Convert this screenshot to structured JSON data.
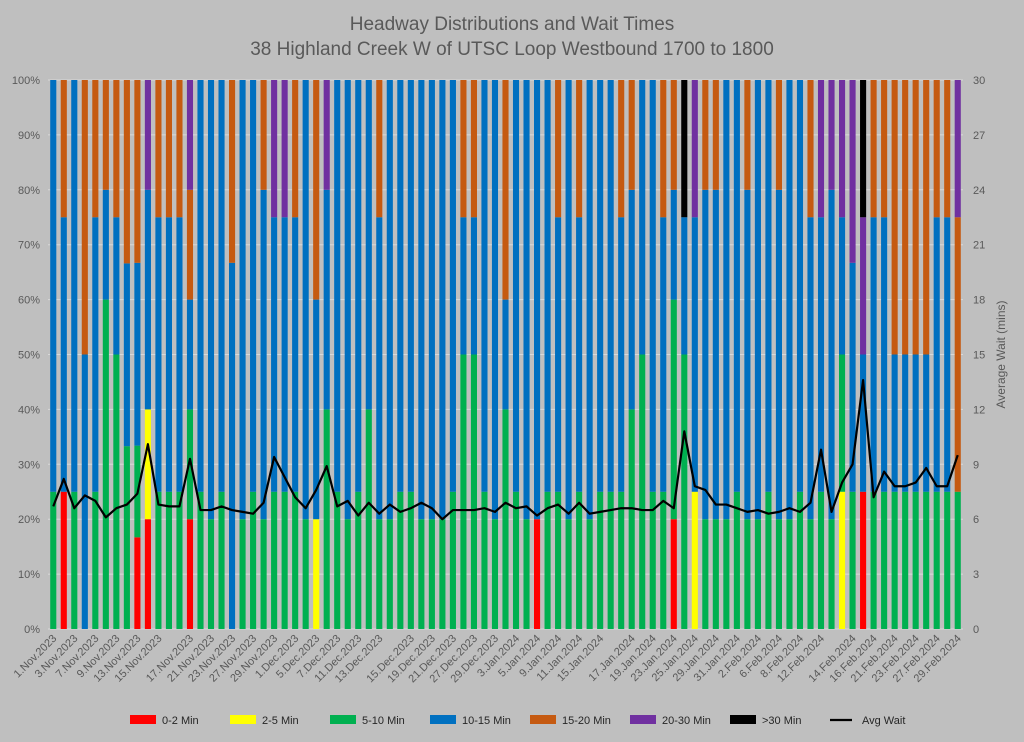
{
  "chart_data": {
    "type": "bar",
    "stacked": true,
    "percent": true,
    "title": "Headway Distributions and Wait Times",
    "subtitle": "38 Highland Creek  W of UTSC Loop Westbound 1700 to 1800",
    "y_left_ticks": [
      "0%",
      "10%",
      "20%",
      "30%",
      "40%",
      "50%",
      "60%",
      "70%",
      "80%",
      "90%",
      "100%"
    ],
    "y_right_ticks": [
      "0",
      "3",
      "6",
      "9",
      "12",
      "15",
      "18",
      "21",
      "24",
      "27",
      "30"
    ],
    "y_right_label": "Average Wait (mins)",
    "ylim_left": [
      0,
      100
    ],
    "ylim_right": [
      0,
      30
    ],
    "grid": true,
    "legend_position": "bottom",
    "x_tick_labels": [
      "1.Nov.2023",
      "3.Nov.2023",
      "7.Nov.2023",
      "9.Nov.2023",
      "13.Nov.2023",
      "15.Nov.2023",
      "17.Nov.2023",
      "21.Nov.2023",
      "23.Nov.2023",
      "27.Nov.2023",
      "29.Nov.2023",
      "1.Dec.2023",
      "5.Dec.2023",
      "7.Dec.2023",
      "11.Dec.2023",
      "13.Dec.2023",
      "15.Dec.2023",
      "19.Dec.2023",
      "21.Dec.2023",
      "27.Dec.2023",
      "29.Dec.2023",
      "3.Jan.2024",
      "5.Jan.2024",
      "9.Jan.2024",
      "11.Jan.2024",
      "15.Jan.2024",
      "17.Jan.2024",
      "19.Jan.2024",
      "23.Jan.2024",
      "25.Jan.2024",
      "29.Jan.2024",
      "31.Jan.2024",
      "2.Feb.2024",
      "6.Feb.2024",
      "8.Feb.2024",
      "12.Feb.2024",
      "14.Feb.2024",
      "16.Feb.2024",
      "21.Feb.2024",
      "23.Feb.2024",
      "27.Feb.2024",
      "29.Feb.2024"
    ],
    "series": [
      {
        "name": "0-2 Min",
        "color": "#ff0000"
      },
      {
        "name": "2-5 Min",
        "color": "#ffff00"
      },
      {
        "name": "5-10 Min",
        "color": "#00b050"
      },
      {
        "name": "10-15 Min",
        "color": "#0070c0"
      },
      {
        "name": "15-20 Min",
        "color": "#c55a11"
      },
      {
        "name": "20-30 Min",
        "color": "#7030a0"
      },
      {
        "name": ">30 Min",
        "color": "#000000"
      }
    ],
    "line_series": {
      "name": "Avg Wait",
      "color": "#000000"
    },
    "bars": [
      {
        "v": [
          0,
          0,
          25,
          75,
          0,
          0,
          0
        ],
        "avg": 6.7
      },
      {
        "v": [
          25,
          0,
          0,
          50,
          25,
          0,
          0
        ],
        "avg": 8.2
      },
      {
        "v": [
          0,
          0,
          25,
          75,
          0,
          0,
          0
        ],
        "avg": 6.6
      },
      {
        "v": [
          0,
          0,
          0,
          50,
          50,
          0,
          0
        ],
        "avg": 7.3
      },
      {
        "v": [
          0,
          0,
          25,
          50,
          25,
          0,
          0
        ],
        "avg": 7.0
      },
      {
        "v": [
          0,
          0,
          60,
          20,
          20,
          0,
          0
        ],
        "avg": 6.1
      },
      {
        "v": [
          0,
          0,
          50,
          25,
          25,
          0,
          0
        ],
        "avg": 6.6
      },
      {
        "v": [
          0,
          0,
          33.3,
          33.3,
          33.4,
          0,
          0
        ],
        "avg": 6.8
      },
      {
        "v": [
          16.7,
          0,
          16.7,
          33.3,
          33.3,
          0,
          0
        ],
        "avg": 7.4
      },
      {
        "v": [
          20,
          20,
          0,
          40,
          0,
          20,
          0
        ],
        "avg": 10.1
      },
      {
        "v": [
          0,
          0,
          25,
          50,
          25,
          0,
          0
        ],
        "avg": 6.8
      },
      {
        "v": [
          0,
          0,
          25,
          50,
          25,
          0,
          0
        ],
        "avg": 6.7
      },
      {
        "v": [
          0,
          0,
          25,
          50,
          25,
          0,
          0
        ],
        "avg": 6.7
      },
      {
        "v": [
          20,
          0,
          20,
          20,
          20,
          20,
          0
        ],
        "avg": 9.3
      },
      {
        "v": [
          0,
          0,
          25,
          75,
          0,
          0,
          0
        ],
        "avg": 6.5
      },
      {
        "v": [
          0,
          0,
          20,
          80,
          0,
          0,
          0
        ],
        "avg": 6.5
      },
      {
        "v": [
          0,
          0,
          25,
          75,
          0,
          0,
          0
        ],
        "avg": 6.7
      },
      {
        "v": [
          0,
          0,
          0,
          66.7,
          33.3,
          0,
          0
        ],
        "avg": 6.5
      },
      {
        "v": [
          0,
          0,
          20,
          80,
          0,
          0,
          0
        ],
        "avg": 6.4
      },
      {
        "v": [
          0,
          0,
          25,
          75,
          0,
          0,
          0
        ],
        "avg": 6.3
      },
      {
        "v": [
          0,
          0,
          20,
          60,
          20,
          0,
          0
        ],
        "avg": 6.9
      },
      {
        "v": [
          0,
          0,
          25,
          50,
          0,
          25,
          0
        ],
        "avg": 9.4
      },
      {
        "v": [
          0,
          0,
          25,
          50,
          0,
          25,
          0
        ],
        "avg": 8.3
      },
      {
        "v": [
          0,
          0,
          25,
          50,
          25,
          0,
          0
        ],
        "avg": 7.2
      },
      {
        "v": [
          0,
          0,
          20,
          80,
          0,
          0,
          0
        ],
        "avg": 6.6
      },
      {
        "v": [
          0,
          20,
          0,
          40,
          40,
          0,
          0
        ],
        "avg": 7.6
      },
      {
        "v": [
          0,
          0,
          40,
          40,
          0,
          20,
          0
        ],
        "avg": 8.9
      },
      {
        "v": [
          0,
          0,
          25,
          75,
          0,
          0,
          0
        ],
        "avg": 6.7
      },
      {
        "v": [
          0,
          0,
          20,
          80,
          0,
          0,
          0
        ],
        "avg": 7.0
      },
      {
        "v": [
          0,
          0,
          25,
          75,
          0,
          0,
          0
        ],
        "avg": 6.2
      },
      {
        "v": [
          0,
          0,
          40,
          60,
          0,
          0,
          0
        ],
        "avg": 6.9
      },
      {
        "v": [
          0,
          0,
          20,
          55,
          25,
          0,
          0
        ],
        "avg": 6.3
      },
      {
        "v": [
          0,
          0,
          20,
          80,
          0,
          0,
          0
        ],
        "avg": 6.8
      },
      {
        "v": [
          0,
          0,
          25,
          75,
          0,
          0,
          0
        ],
        "avg": 6.4
      },
      {
        "v": [
          0,
          0,
          25,
          75,
          0,
          0,
          0
        ],
        "avg": 6.6
      },
      {
        "v": [
          0,
          0,
          20,
          80,
          0,
          0,
          0
        ],
        "avg": 6.9
      },
      {
        "v": [
          0,
          0,
          20,
          80,
          0,
          0,
          0
        ],
        "avg": 6.6
      },
      {
        "v": [
          0,
          0,
          20,
          80,
          0,
          0,
          0
        ],
        "avg": 6.0
      },
      {
        "v": [
          0,
          0,
          25,
          75,
          0,
          0,
          0
        ],
        "avg": 6.5
      },
      {
        "v": [
          0,
          0,
          50,
          25,
          25,
          0,
          0
        ],
        "avg": 6.5
      },
      {
        "v": [
          0,
          0,
          50,
          25,
          25,
          0,
          0
        ],
        "avg": 6.5
      },
      {
        "v": [
          0,
          0,
          25,
          75,
          0,
          0,
          0
        ],
        "avg": 6.6
      },
      {
        "v": [
          0,
          0,
          20,
          80,
          0,
          0,
          0
        ],
        "avg": 6.4
      },
      {
        "v": [
          0,
          0,
          40,
          20,
          40,
          0,
          0
        ],
        "avg": 6.9
      },
      {
        "v": [
          0,
          0,
          25,
          75,
          0,
          0,
          0
        ],
        "avg": 6.6
      },
      {
        "v": [
          0,
          0,
          20,
          80,
          0,
          0,
          0
        ],
        "avg": 6.7
      },
      {
        "v": [
          20,
          0,
          0,
          80,
          0,
          0,
          0
        ],
        "avg": 6.2
      },
      {
        "v": [
          0,
          0,
          25,
          75,
          0,
          0,
          0
        ],
        "avg": 6.6
      },
      {
        "v": [
          0,
          0,
          25,
          50,
          25,
          0,
          0
        ],
        "avg": 6.8
      },
      {
        "v": [
          0,
          0,
          20,
          80,
          0,
          0,
          0
        ],
        "avg": 6.3
      },
      {
        "v": [
          0,
          0,
          25,
          50,
          25,
          0,
          0
        ],
        "avg": 6.9
      },
      {
        "v": [
          0,
          0,
          20,
          80,
          0,
          0,
          0
        ],
        "avg": 6.3
      },
      {
        "v": [
          0,
          0,
          25,
          75,
          0,
          0,
          0
        ],
        "avg": 6.4
      },
      {
        "v": [
          0,
          0,
          25,
          75,
          0,
          0,
          0
        ],
        "avg": 6.5
      },
      {
        "v": [
          0,
          0,
          25,
          50,
          25,
          0,
          0
        ],
        "avg": 6.6
      },
      {
        "v": [
          0,
          0,
          40,
          40,
          20,
          0,
          0
        ],
        "avg": 6.6
      },
      {
        "v": [
          0,
          0,
          50,
          50,
          0,
          0,
          0
        ],
        "avg": 6.5
      },
      {
        "v": [
          0,
          0,
          25,
          75,
          0,
          0,
          0
        ],
        "avg": 6.5
      },
      {
        "v": [
          0,
          0,
          25,
          50,
          25,
          0,
          0
        ],
        "avg": 7.0
      },
      {
        "v": [
          20,
          0,
          40,
          20,
          20,
          0,
          0
        ],
        "avg": 6.6
      },
      {
        "v": [
          0,
          0,
          50,
          25,
          0,
          0,
          25
        ],
        "avg": 10.8
      },
      {
        "v": [
          0,
          25,
          0,
          50,
          0,
          25,
          0
        ],
        "avg": 7.8
      },
      {
        "v": [
          0,
          0,
          20,
          60,
          20,
          0,
          0
        ],
        "avg": 7.6
      },
      {
        "v": [
          0,
          0,
          20,
          60,
          20,
          0,
          0
        ],
        "avg": 6.8
      },
      {
        "v": [
          0,
          0,
          20,
          80,
          0,
          0,
          0
        ],
        "avg": 6.8
      },
      {
        "v": [
          0,
          0,
          25,
          75,
          0,
          0,
          0
        ],
        "avg": 6.6
      },
      {
        "v": [
          0,
          0,
          20,
          60,
          20,
          0,
          0
        ],
        "avg": 6.4
      },
      {
        "v": [
          0,
          0,
          20,
          80,
          0,
          0,
          0
        ],
        "avg": 6.5
      },
      {
        "v": [
          0,
          0,
          25,
          75,
          0,
          0,
          0
        ],
        "avg": 6.3
      },
      {
        "v": [
          0,
          0,
          20,
          60,
          20,
          0,
          0
        ],
        "avg": 6.4
      },
      {
        "v": [
          0,
          0,
          20,
          80,
          0,
          0,
          0
        ],
        "avg": 6.6
      },
      {
        "v": [
          0,
          0,
          25,
          75,
          0,
          0,
          0
        ],
        "avg": 6.4
      },
      {
        "v": [
          0,
          0,
          20,
          55,
          25,
          0,
          0
        ],
        "avg": 6.9
      },
      {
        "v": [
          0,
          0,
          25,
          50,
          0,
          25,
          0
        ],
        "avg": 9.8
      },
      {
        "v": [
          0,
          0,
          20,
          60,
          0,
          20,
          0
        ],
        "avg": 6.4
      },
      {
        "v": [
          0,
          25,
          25,
          25,
          0,
          25,
          0
        ],
        "avg": 8.0
      },
      {
        "v": [
          0,
          0,
          25,
          41.7,
          0,
          33.3,
          0
        ],
        "avg": 9.0
      },
      {
        "v": [
          25,
          0,
          0,
          25,
          0,
          25,
          25
        ],
        "avg": 13.6
      },
      {
        "v": [
          0,
          0,
          25,
          50,
          25,
          0,
          0
        ],
        "avg": 7.2
      },
      {
        "v": [
          0,
          0,
          25,
          50,
          25,
          0,
          0
        ],
        "avg": 8.6
      },
      {
        "v": [
          0,
          0,
          25,
          25,
          50,
          0,
          0
        ],
        "avg": 7.8
      },
      {
        "v": [
          0,
          0,
          25,
          25,
          50,
          0,
          0
        ],
        "avg": 7.8
      },
      {
        "v": [
          0,
          0,
          25,
          25,
          50,
          0,
          0
        ],
        "avg": 8.0
      },
      {
        "v": [
          0,
          0,
          25,
          25,
          50,
          0,
          0
        ],
        "avg": 8.8
      },
      {
        "v": [
          0,
          0,
          25,
          50,
          25,
          0,
          0
        ],
        "avg": 7.8
      },
      {
        "v": [
          0,
          0,
          25,
          50,
          25,
          0,
          0
        ],
        "avg": 7.8
      },
      {
        "v": [
          0,
          0,
          25,
          0,
          50,
          25,
          0
        ],
        "avg": 9.5
      }
    ]
  }
}
